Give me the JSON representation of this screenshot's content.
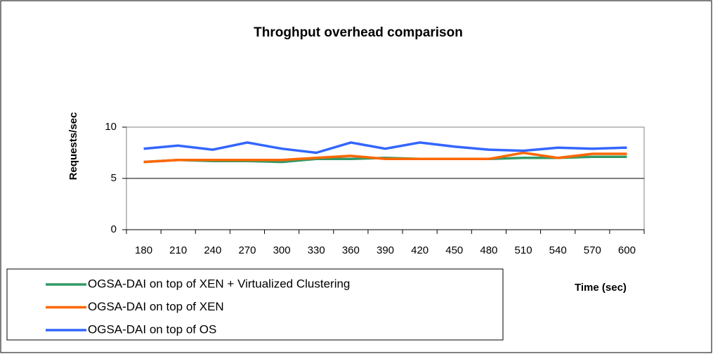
{
  "chart_data": {
    "type": "line",
    "title": "Throghput overhead comparison",
    "x_label": "Time (sec)",
    "y_label": "Requests/sec",
    "categories": [
      "180",
      "210",
      "240",
      "270",
      "300",
      "330",
      "360",
      "390",
      "420",
      "450",
      "480",
      "510",
      "540",
      "570",
      "600"
    ],
    "series": [
      {
        "name": "OGSA-DAI on top of XEN + Virtualized Clustering",
        "color": "#339966",
        "values": [
          6.6,
          6.8,
          6.7,
          6.7,
          6.6,
          6.9,
          6.9,
          7.0,
          6.9,
          6.9,
          6.9,
          7.0,
          7.0,
          7.1,
          7.1
        ]
      },
      {
        "name": "OGSA-DAI on top of XEN",
        "color": "#ff6600",
        "values": [
          6.6,
          6.8,
          6.8,
          6.8,
          6.8,
          7.0,
          7.2,
          6.9,
          6.9,
          6.9,
          6.9,
          7.5,
          7.0,
          7.4,
          7.4
        ]
      },
      {
        "name": "OGSA-DAI on top of OS",
        "color": "#3366ff",
        "values": [
          7.9,
          8.2,
          7.8,
          8.5,
          7.9,
          7.5,
          8.5,
          7.9,
          8.5,
          8.1,
          7.8,
          7.7,
          8.0,
          7.9,
          8.0
        ]
      }
    ],
    "ylim": [
      0,
      10
    ],
    "yticks": [
      0,
      5,
      10
    ],
    "grid": true,
    "legend": "bottom-left"
  }
}
